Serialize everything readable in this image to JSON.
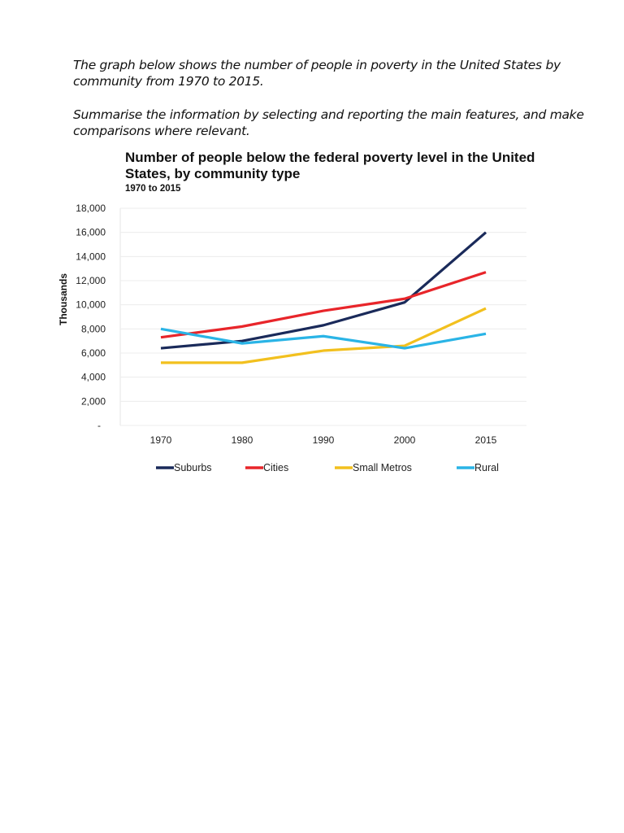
{
  "prompt": {
    "line1": "The graph below shows the number of people in poverty in the United States by community from 1970 to 2015.",
    "line2": "Summarise the information by selecting and reporting the main features, and make comparisons where relevant."
  },
  "chart_data": {
    "type": "line",
    "title": "Number of people below the federal poverty level in the United States, by community type",
    "subtitle": "1970 to 2015",
    "xlabel": "",
    "ylabel": "Thousands",
    "categories": [
      "1970",
      "1980",
      "1990",
      "2000",
      "2015"
    ],
    "ylim": [
      0,
      18000
    ],
    "yticks": [
      "-",
      "2,000",
      "4,000",
      "6,000",
      "8,000",
      "10,000",
      "12,000",
      "14,000",
      "16,000",
      "18,000"
    ],
    "grid": true,
    "legend": "bottom",
    "series": [
      {
        "name": "Suburbs",
        "color": "#1a2a5a",
        "values": [
          6400,
          7000,
          8300,
          10200,
          16000
        ]
      },
      {
        "name": "Cities",
        "color": "#e8252a",
        "values": [
          7300,
          8200,
          9500,
          10500,
          12700
        ]
      },
      {
        "name": "Small Metros",
        "color": "#f2c01e",
        "values": [
          5200,
          5200,
          6200,
          6600,
          9700
        ]
      },
      {
        "name": "Rural",
        "color": "#2ab4e6",
        "values": [
          8000,
          6800,
          7400,
          6400,
          7600
        ]
      }
    ]
  }
}
